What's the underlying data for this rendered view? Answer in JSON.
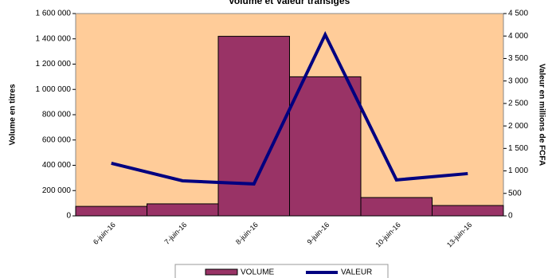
{
  "chart_data": {
    "type": "bar-line",
    "title": "Volume et Valeur transigés",
    "y_label": "Volume en titres",
    "y2_label": "Valeur en millions de FCFA",
    "categories": [
      "6-juin-16",
      "7-juin-16",
      "8-juin-16",
      "9-juin-16",
      "10-juin-16",
      "13-juin-16"
    ],
    "series": [
      {
        "name": "VOLUME",
        "type": "bar",
        "color": "#993366",
        "values": [
          75000,
          95000,
          1420000,
          1100000,
          145000,
          82000
        ]
      },
      {
        "name": "VALEUR",
        "type": "line",
        "axis": "y2",
        "color": "#000080",
        "values": [
          1170,
          780,
          710,
          4030,
          800,
          940
        ]
      }
    ],
    "ylim": [
      0,
      1600000
    ],
    "yticks": [
      0,
      {
        "value": 200000,
        "label": "200 000"
      },
      {
        "value": 400000,
        "label": "400 000"
      },
      {
        "value": 600000,
        "label": "600 000"
      },
      {
        "value": 800000,
        "label": "800 000"
      },
      {
        "value": 1000000,
        "label": "1 000 000"
      },
      {
        "value": 1200000,
        "label": "1 200 000"
      },
      {
        "value": 1400000,
        "label": "1 400 000"
      },
      {
        "value": 1600000,
        "label": "1 600 000"
      }
    ],
    "y2lim": [
      0,
      4500
    ],
    "y2ticks": [
      0,
      500,
      {
        "value": 1000,
        "label": "1 000"
      },
      {
        "value": 1500,
        "label": "1 500"
      },
      {
        "value": 2000,
        "label": "2 000"
      },
      {
        "value": 2500,
        "label": "2 500"
      },
      {
        "value": 3000,
        "label": "3 000"
      },
      {
        "value": 3500,
        "label": "3 500"
      },
      {
        "value": 4000,
        "label": "4 000"
      },
      {
        "value": 4500,
        "label": "4 500"
      }
    ],
    "plot_background": "#FFCC99"
  }
}
